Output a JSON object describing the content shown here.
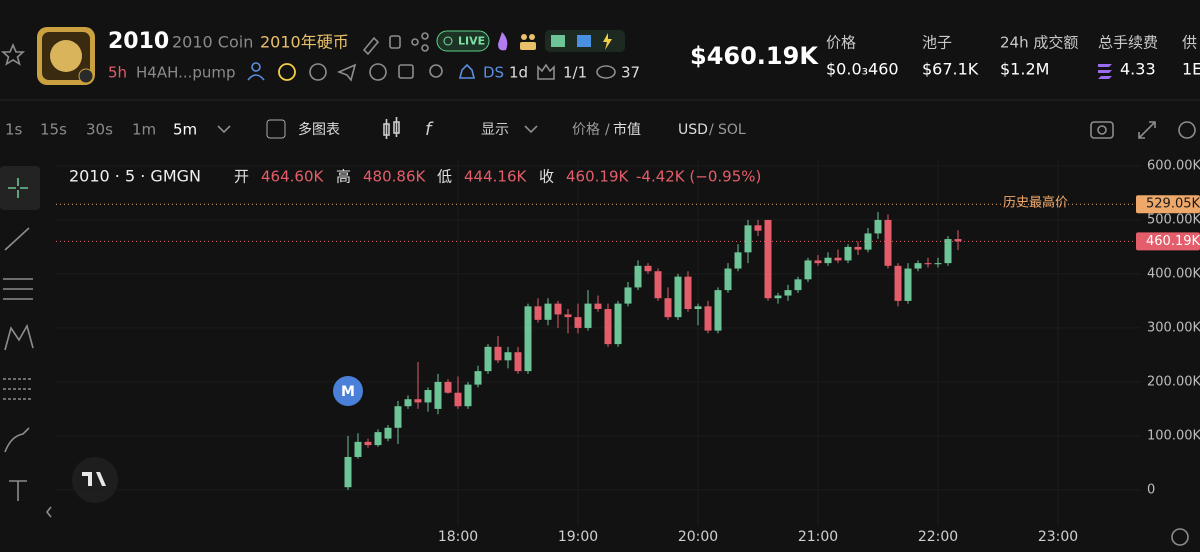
{
  "header": {
    "name": "2010",
    "full_name": "2010 Coin",
    "cn_name": "2010年硬币",
    "live": "LIVE",
    "age": "5h",
    "address": "H4AH...pump",
    "ds": "DS",
    "ds_period": "1d",
    "holders_ratio": "1/1",
    "views": "37",
    "price": "$460.19K",
    "stats": [
      {
        "label": "价格",
        "value": "$0.0₃460"
      },
      {
        "label": "池子",
        "value": "$67.1K"
      },
      {
        "label": "24h 成交额",
        "value": "$1.2M"
      },
      {
        "label": "总手续费",
        "value": "4.33"
      },
      {
        "label": "供",
        "value": "1E"
      }
    ]
  },
  "toolbar": {
    "intervals": [
      "1s",
      "15s",
      "30s",
      "1m",
      "5m"
    ],
    "multi_chart": "多图表",
    "display": "显示",
    "price": "价格",
    "mcap": "市值",
    "usd": "USD",
    "sol": "SOL"
  },
  "chart_data": {
    "type": "candlestick",
    "symbol": "2010 · 5 · GMGN",
    "legend": [
      {
        "name": "开",
        "value": 464600,
        "label": "464.60K"
      },
      {
        "name": "高",
        "value": 480860,
        "label": "480.86K"
      },
      {
        "name": "低",
        "value": 444160,
        "label": "444.16K"
      },
      {
        "name": "收",
        "value": 460190,
        "label": "460.19K"
      }
    ],
    "change": "-4.42K (−0.95%)",
    "marker": "M",
    "ath": {
      "name": "历史最高价",
      "value": 529050,
      "label": "529.05K"
    },
    "last": {
      "value": 460190,
      "label": "460.19K"
    },
    "up_color": "#6cc497",
    "down_color": "#e35d6a",
    "ath_color": "#eea86a",
    "grid": true,
    "x": [
      "17:05",
      "17:10",
      "17:15",
      "17:20",
      "17:25",
      "17:30",
      "17:35",
      "17:40",
      "17:45",
      "17:50",
      "17:55",
      "18:00",
      "18:05",
      "18:10",
      "18:15",
      "18:20",
      "18:25",
      "18:30",
      "18:35",
      "18:40",
      "18:45",
      "18:50",
      "18:55",
      "19:00",
      "19:05",
      "19:10",
      "19:15",
      "19:20",
      "19:25",
      "19:30",
      "19:35",
      "19:40",
      "19:45",
      "19:50",
      "19:55",
      "20:00",
      "20:05",
      "20:10",
      "20:15",
      "20:20",
      "20:25",
      "20:30",
      "20:35",
      "20:40",
      "20:45",
      "20:50",
      "20:55",
      "21:00",
      "21:05",
      "21:10",
      "21:15",
      "21:20",
      "21:25",
      "21:30",
      "21:35",
      "21:40",
      "21:45",
      "21:50",
      "21:55",
      "22:00",
      "22:05",
      "22:10"
    ],
    "open": [
      5000,
      61000,
      89000,
      83000,
      95000,
      115000,
      155000,
      168000,
      162000,
      150000,
      200000,
      180000,
      155000,
      195000,
      220000,
      265000,
      240000,
      255000,
      220000,
      340000,
      315000,
      345000,
      325000,
      320000,
      300000,
      345000,
      335000,
      270000,
      345000,
      375000,
      415000,
      405000,
      355000,
      320000,
      395000,
      335000,
      340000,
      295000,
      370000,
      410000,
      440000,
      490000,
      500000,
      355000,
      360000,
      370000,
      390000,
      425000,
      420000,
      430000,
      425000,
      450000,
      445000,
      475000,
      500000,
      415000,
      350000,
      410000,
      420000,
      418000,
      420000,
      464600
    ],
    "high": [
      100000,
      105000,
      95000,
      112000,
      120000,
      165000,
      175000,
      237000,
      190000,
      215000,
      205000,
      210000,
      200000,
      230000,
      270000,
      285000,
      265000,
      265000,
      345000,
      355000,
      355000,
      350000,
      335000,
      345000,
      370000,
      360000,
      345000,
      350000,
      385000,
      425000,
      420000,
      410000,
      375000,
      400000,
      405000,
      345000,
      350000,
      375000,
      420000,
      455000,
      500000,
      500000,
      500000,
      365000,
      380000,
      395000,
      430000,
      435000,
      440000,
      445000,
      455000,
      460000,
      485000,
      515000,
      510000,
      420000,
      420000,
      425000,
      430000,
      430000,
      470000,
      480860
    ],
    "low": [
      0,
      58000,
      78000,
      80000,
      90000,
      85000,
      150000,
      150000,
      145000,
      140000,
      178000,
      150000,
      150000,
      190000,
      215000,
      235000,
      225000,
      215000,
      215000,
      310000,
      305000,
      300000,
      290000,
      290000,
      295000,
      330000,
      265000,
      265000,
      340000,
      370000,
      400000,
      350000,
      315000,
      315000,
      330000,
      305000,
      290000,
      290000,
      365000,
      405000,
      420000,
      470000,
      350000,
      345000,
      350000,
      365000,
      385000,
      415000,
      415000,
      420000,
      420000,
      435000,
      440000,
      465000,
      410000,
      340000,
      345000,
      405000,
      412000,
      412000,
      415000,
      444160
    ],
    "close": [
      61000,
      89000,
      83000,
      107000,
      115000,
      155000,
      168000,
      162000,
      185000,
      200000,
      180000,
      155000,
      195000,
      220000,
      265000,
      240000,
      255000,
      220000,
      340000,
      315000,
      345000,
      325000,
      320000,
      300000,
      345000,
      335000,
      270000,
      345000,
      375000,
      415000,
      405000,
      355000,
      320000,
      395000,
      335000,
      340000,
      295000,
      370000,
      410000,
      440000,
      490000,
      480000,
      355000,
      360000,
      370000,
      390000,
      425000,
      420000,
      430000,
      425000,
      450000,
      445000,
      475000,
      500000,
      415000,
      350000,
      410000,
      420000,
      418000,
      420000,
      464600,
      460190
    ],
    "xlim": [
      "14:39",
      "23:41"
    ],
    "xticks": [
      "18:00",
      "19:00",
      "20:00",
      "21:00",
      "22:00",
      "23:00"
    ],
    "ylim": [
      -65000,
      611000
    ],
    "yticks": [
      0,
      {
        "value": 100000,
        "label": "100.00K"
      },
      {
        "value": 200000,
        "label": "200.00K"
      },
      {
        "value": 300000,
        "label": "300.00K"
      },
      {
        "value": 400000,
        "label": "400.00K"
      },
      {
        "value": 500000,
        "label": "500.00K"
      },
      {
        "value": 600000,
        "label": "600.00K"
      }
    ]
  }
}
